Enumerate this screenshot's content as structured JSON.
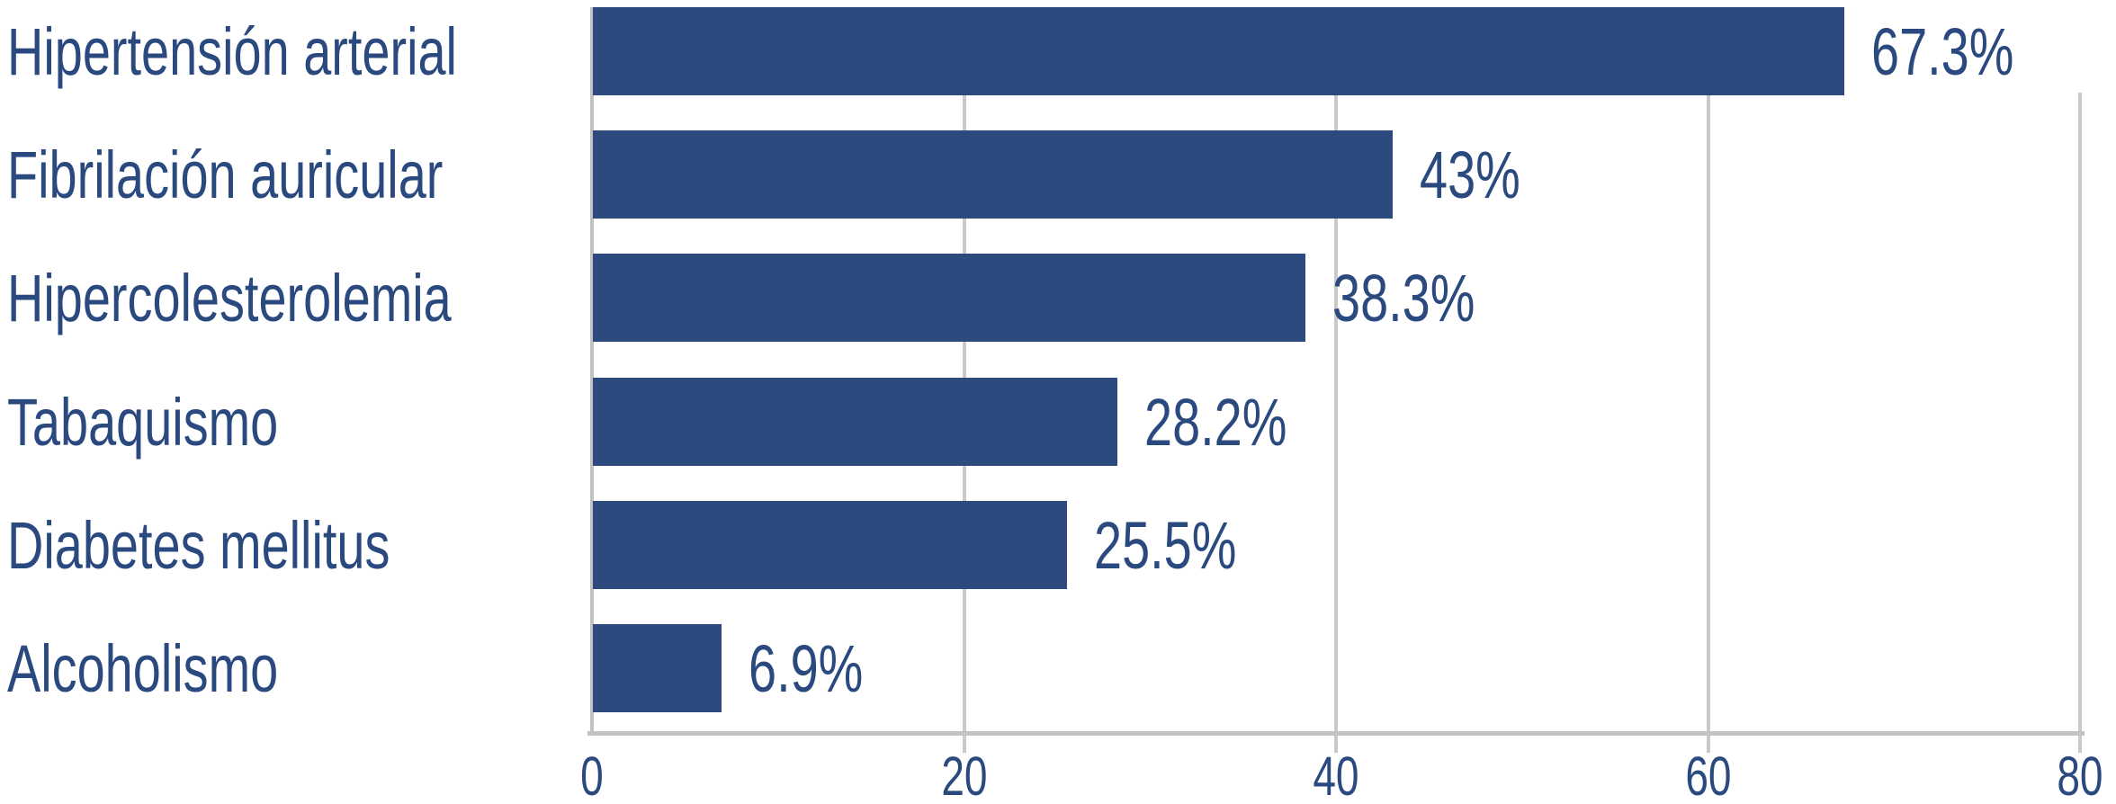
{
  "chart_data": {
    "type": "bar",
    "orientation": "horizontal",
    "title": "",
    "xlabel": "",
    "ylabel": "",
    "categories": [
      "Hipertensión arterial",
      "Fibrilación auricular",
      "Hipercolesterolemia",
      "Tabaquismo",
      "Diabetes mellitus",
      "Alcoholismo"
    ],
    "values": [
      67.3,
      43,
      38.3,
      28.2,
      25.5,
      6.9
    ],
    "value_labels": [
      "67.3%",
      "43%",
      "38.3%",
      "28.2%",
      "25.5%",
      "6.9%"
    ],
    "xlim": [
      0,
      80
    ],
    "xticks": [
      0,
      20,
      40,
      60,
      80
    ],
    "xtick_labels": [
      "0",
      "20",
      "40",
      "60",
      "80"
    ],
    "grid": "vertical",
    "legend": "none",
    "colors": {
      "bar": "#2C4A7E",
      "text": "#2A497F",
      "gridline": "#C9C9C9",
      "axis": "#C2C2C2",
      "background": "#FFFFFF"
    }
  }
}
